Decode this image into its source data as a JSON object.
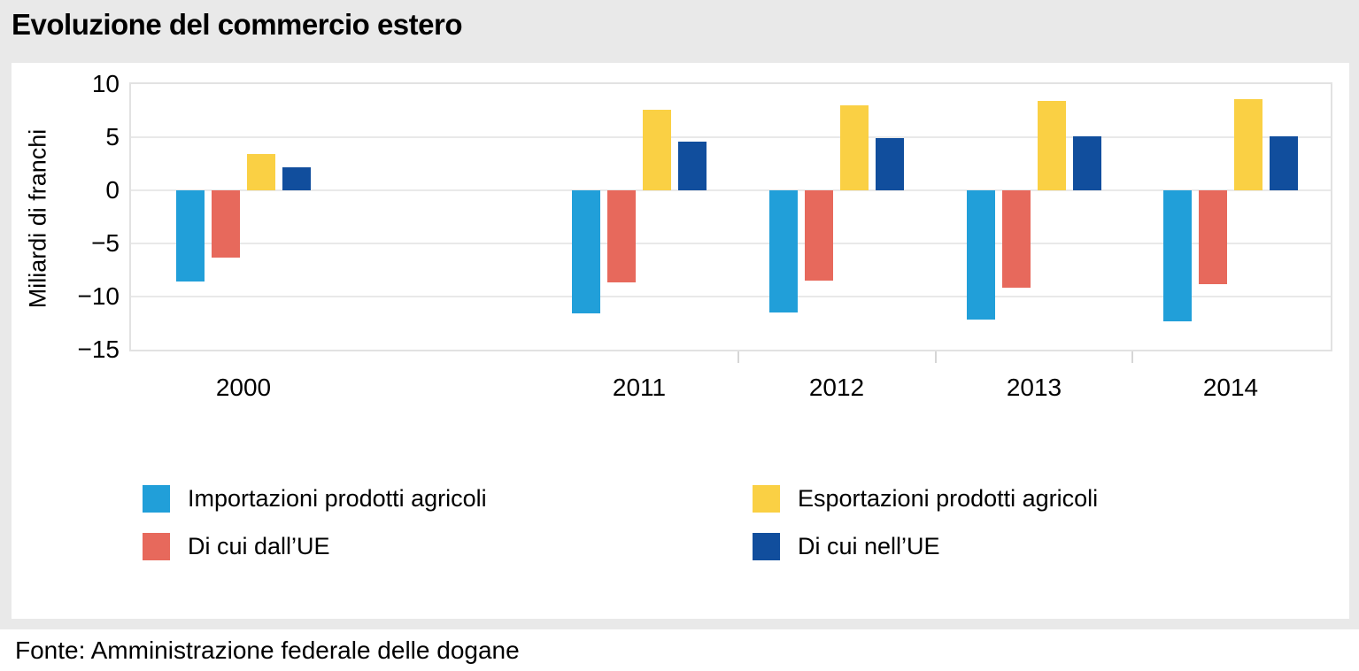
{
  "title": "Evoluzione del commercio estero",
  "source": "Fonte: Amministrazione federale delle dogane",
  "colors": {
    "page_background": "#e9e9e9",
    "panel_background": "#ffffff",
    "plot_border": "#e2e2e2",
    "gridline": "#e9e9e9",
    "axis_tick": "#d6d6d6",
    "text": "#000000",
    "import_blue": "#219fd9",
    "import_eu_salmon": "#e7695c",
    "export_yellow": "#fad044",
    "export_eu_navy": "#114e9d"
  },
  "chart_data": {
    "type": "bar",
    "title": "Evoluzione del commercio estero",
    "ylabel": "Miliardi di franchi",
    "xlabel": "",
    "ylim": [
      -15,
      10
    ],
    "yticks": [
      10,
      5,
      0,
      -5,
      -10,
      -15
    ],
    "grid": true,
    "legend_position": "bottom",
    "categories": [
      "2000",
      "2011",
      "2012",
      "2013",
      "2014"
    ],
    "series": [
      {
        "name": "Importazioni prodotti agricoli",
        "key": "importazioni-prodotti-agricoli",
        "color": "#219fd9",
        "values": [
          -8.6,
          -11.6,
          -11.5,
          -12.2,
          -12.3
        ]
      },
      {
        "name": "Di cui dall’UE",
        "key": "di-cui-dall-ue",
        "color": "#e7695c",
        "values": [
          -6.3,
          -8.7,
          -8.5,
          -9.2,
          -8.8
        ]
      },
      {
        "name": "Esportazioni prodotti agricoli",
        "key": "esportazioni-prodotti-agricoli",
        "color": "#fad044",
        "values": [
          3.4,
          7.6,
          8.0,
          8.4,
          8.6
        ]
      },
      {
        "name": "Di cui nell’UE",
        "key": "di-cui-nell-ue",
        "color": "#114e9d",
        "values": [
          2.2,
          4.6,
          4.9,
          5.1,
          5.1
        ]
      }
    ],
    "legend_columns": [
      [
        "importazioni-prodotti-agricoli",
        "di-cui-dall-ue"
      ],
      [
        "esportazioni-prodotti-agricoli",
        "di-cui-nell-ue"
      ]
    ]
  }
}
